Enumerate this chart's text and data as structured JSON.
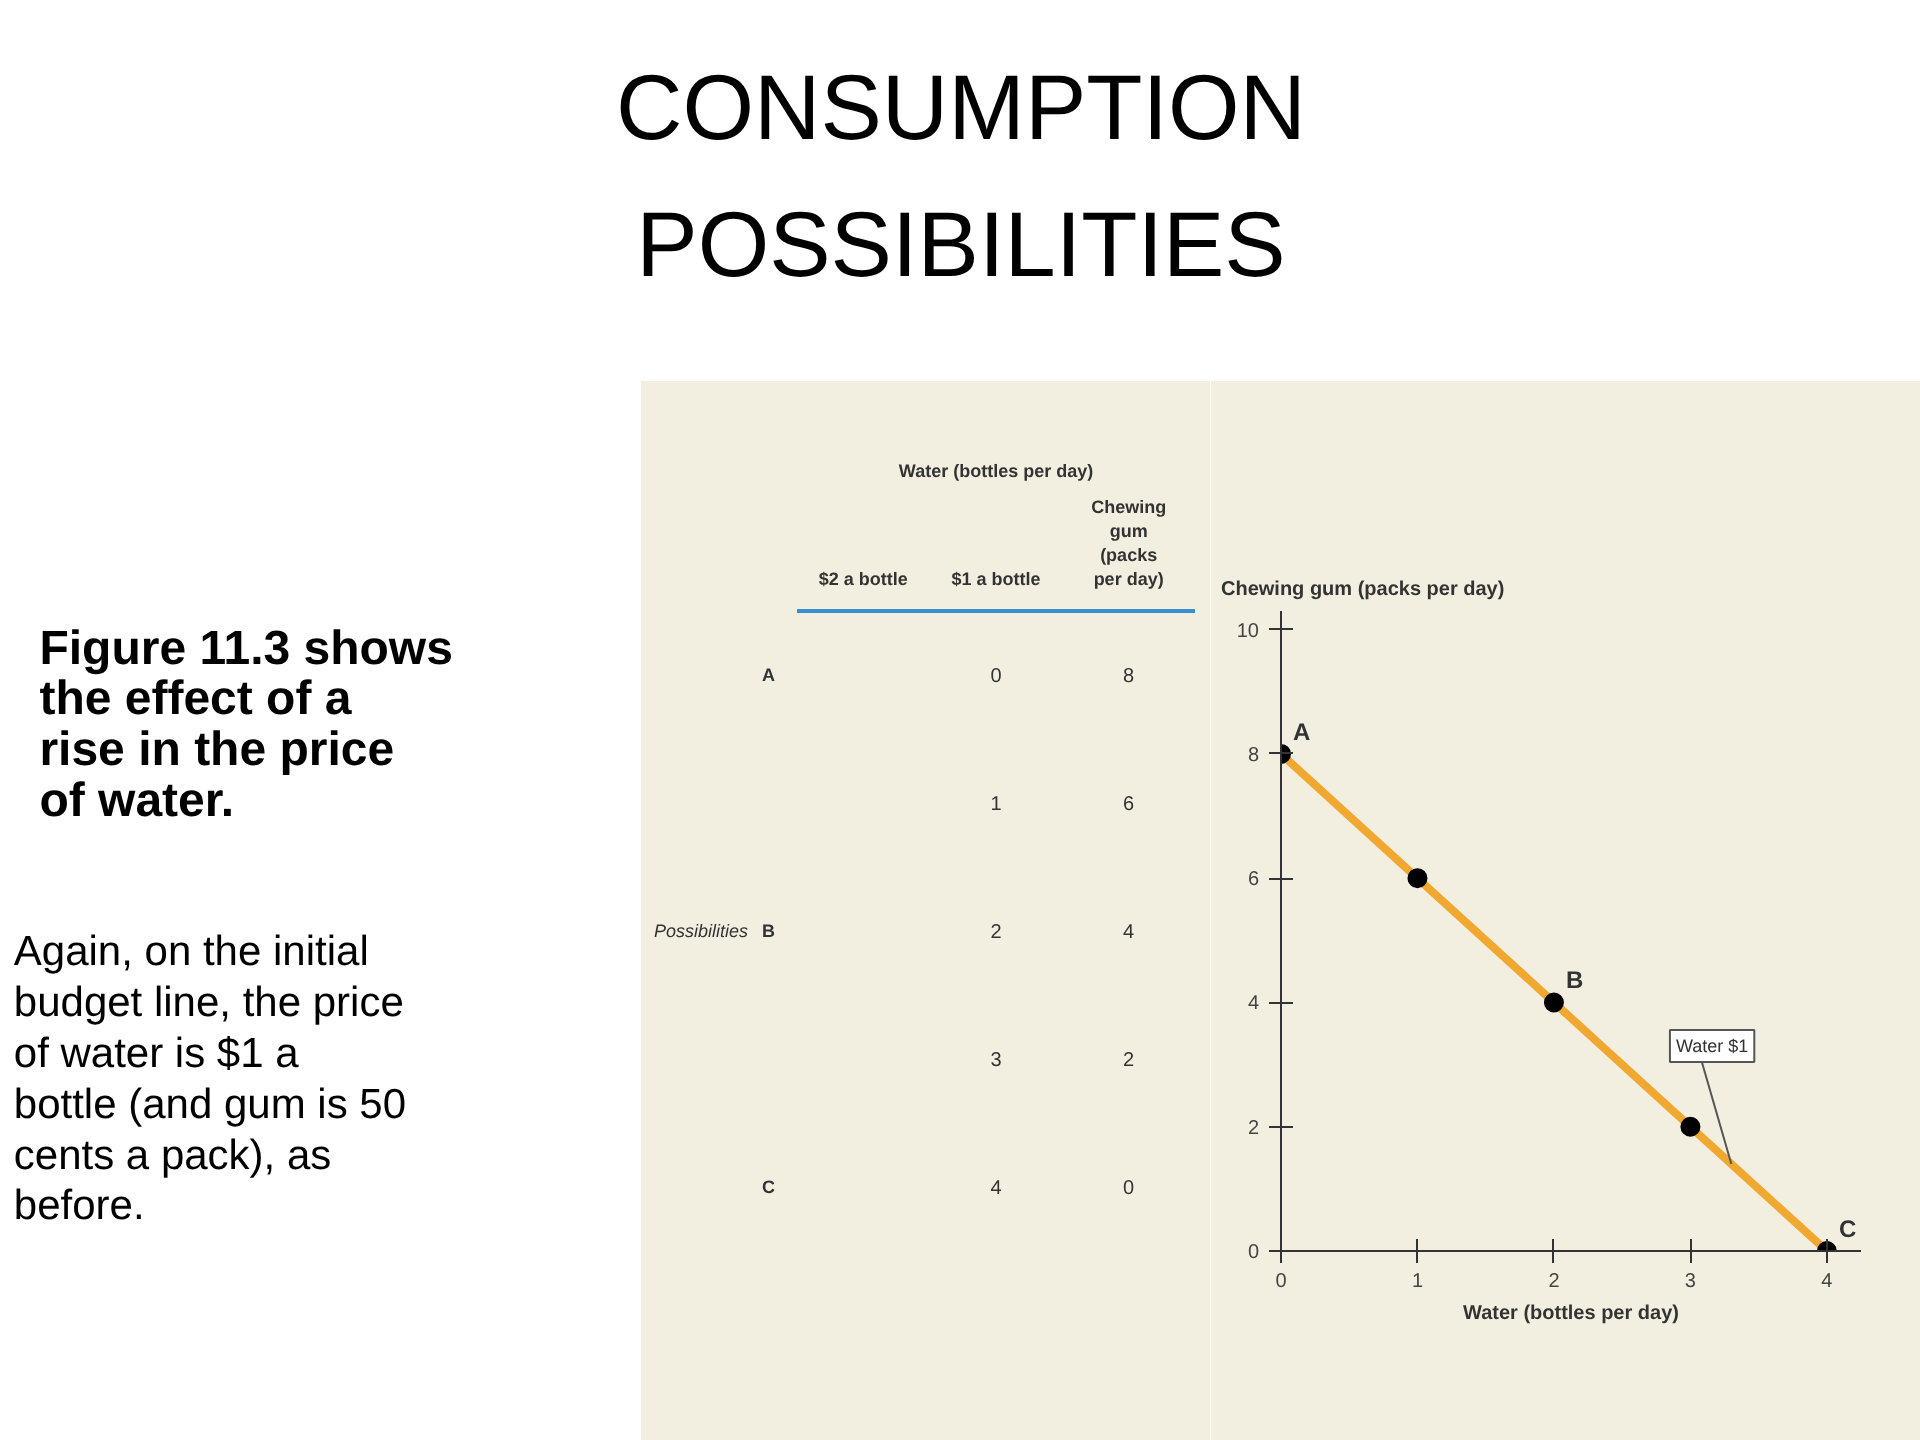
{
  "chart_data": [
    {
      "type": "other",
      "title": "CONSUMPTION POSSIBILITIES",
      "annotations": [
        "Figure 11.3 shows the effect of a rise in the price of water.",
        "Again, on the initial budget line, the price of water is $1 a bottle (and gum is 50 cents a pack), as before."
      ]
    },
    {
      "type": "heatmap",
      "ylabel": "Possibilities",
      "categories": [
        "$2 a bottle",
        "$1 a bottle",
        "Chewing gum (packs per day)"
      ],
      "y_categories": [
        "A",
        null,
        "B",
        null,
        "C"
      ],
      "cells": [
        [
          null,
          0,
          8
        ],
        [
          null,
          1,
          6
        ],
        [
          null,
          2,
          4
        ],
        [
          null,
          3,
          2
        ],
        [
          null,
          4,
          0
        ]
      ],
      "data_labels": true,
      "annotations": [
        "Water (bottles per day)"
      ]
    },
    {
      "type": "line",
      "xlabel": "Water (bottles per day)",
      "ylabel": "Chewing gum (packs per day)",
      "x": [
        0,
        1,
        2,
        3,
        4
      ],
      "series": [
        {
          "name": "Water $1",
          "color": "#f0a830",
          "values": [
            8,
            6,
            4,
            2,
            0
          ]
        }
      ],
      "xlim": [
        0,
        4.25
      ],
      "ylim": [
        0,
        10.3
      ],
      "xticks": [
        0,
        1,
        2,
        3,
        4
      ],
      "yticks": [
        0,
        2,
        4,
        6,
        8,
        10
      ],
      "grid": false,
      "legend": false,
      "marker": "circle",
      "line_style": "solid",
      "annotations": [
        {
          "text": "A",
          "x": 0,
          "y": 8
        },
        {
          "text": "B",
          "x": 2,
          "y": 4
        },
        {
          "text": "C",
          "x": 4,
          "y": 0
        }
      ]
    }
  ]
}
